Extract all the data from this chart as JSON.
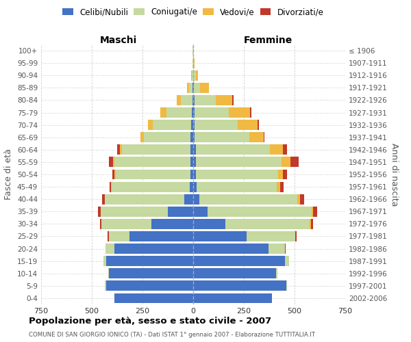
{
  "age_groups": [
    "0-4",
    "5-9",
    "10-14",
    "15-19",
    "20-24",
    "25-29",
    "30-34",
    "35-39",
    "40-44",
    "45-49",
    "50-54",
    "55-59",
    "60-64",
    "65-69",
    "70-74",
    "75-79",
    "80-84",
    "85-89",
    "90-94",
    "95-99",
    "100+"
  ],
  "birth_years": [
    "2002-2006",
    "1997-2001",
    "1992-1996",
    "1987-1991",
    "1982-1986",
    "1977-1981",
    "1972-1976",
    "1967-1971",
    "1962-1966",
    "1957-1961",
    "1952-1956",
    "1947-1951",
    "1942-1946",
    "1937-1941",
    "1932-1936",
    "1927-1931",
    "1922-1926",
    "1917-1921",
    "1912-1916",
    "1907-1911",
    "≤ 1906"
  ],
  "male_celibe": [
    390,
    430,
    415,
    430,
    390,
    315,
    205,
    125,
    45,
    18,
    15,
    15,
    12,
    12,
    10,
    8,
    5,
    2,
    0,
    0,
    0
  ],
  "male_coniugato": [
    0,
    5,
    5,
    12,
    42,
    102,
    248,
    330,
    390,
    385,
    368,
    375,
    340,
    230,
    190,
    125,
    55,
    18,
    8,
    3,
    2
  ],
  "male_vedovo": [
    0,
    0,
    0,
    0,
    0,
    0,
    0,
    1,
    2,
    3,
    4,
    6,
    10,
    18,
    22,
    28,
    22,
    12,
    3,
    0,
    0
  ],
  "male_divorziato": [
    0,
    0,
    0,
    0,
    0,
    4,
    6,
    12,
    12,
    6,
    12,
    18,
    12,
    0,
    0,
    0,
    0,
    0,
    0,
    0,
    0
  ],
  "female_nubile": [
    388,
    458,
    408,
    452,
    372,
    265,
    158,
    72,
    32,
    18,
    12,
    12,
    12,
    6,
    6,
    6,
    6,
    3,
    0,
    0,
    0
  ],
  "female_coniugata": [
    0,
    6,
    6,
    22,
    82,
    238,
    418,
    512,
    482,
    393,
    408,
    425,
    368,
    270,
    215,
    170,
    105,
    32,
    12,
    4,
    2
  ],
  "female_vedova": [
    0,
    0,
    0,
    0,
    0,
    2,
    4,
    6,
    12,
    17,
    22,
    42,
    62,
    72,
    98,
    105,
    82,
    42,
    12,
    2,
    0
  ],
  "female_divorziata": [
    0,
    0,
    0,
    0,
    2,
    6,
    12,
    22,
    22,
    17,
    22,
    42,
    22,
    5,
    5,
    5,
    5,
    0,
    0,
    0,
    0
  ],
  "color_celibe": "#4472C4",
  "color_coniugato": "#c5d9a0",
  "color_vedovo": "#f0b942",
  "color_divorziato": "#c0392b",
  "xlim": 750,
  "title": "Popolazione per età, sesso e stato civile - 2007",
  "subtitle": "COMUNE DI SAN GIORGIO IONICO (TA) - Dati ISTAT 1° gennaio 2007 - Elaborazione TUTTITALIA.IT",
  "label_maschi": "Maschi",
  "label_femmine": "Femmine",
  "ylabel_left": "Fasce di età",
  "ylabel_right": "Anni di nascita",
  "legend_labels": [
    "Celibi/Nubili",
    "Coniugati/e",
    "Vedovi/e",
    "Divorziati/e"
  ],
  "background_color": "#ffffff",
  "grid_color": "#cccccc"
}
